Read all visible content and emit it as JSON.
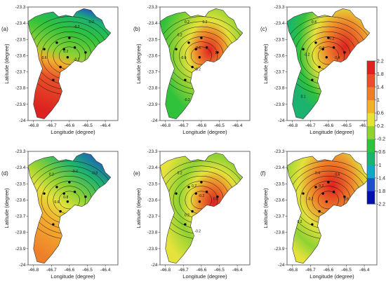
{
  "chart_data": {
    "type": "heatmap",
    "x_label": "Longitude (degree)",
    "y_label": "Latitude (degree)",
    "x_ticks": [
      "-46.8",
      "-46.7",
      "-46.6",
      "-46.5",
      "-46.4"
    ],
    "y_ticks": [
      "-23.3",
      "-23.4",
      "-23.5",
      "-23.6",
      "-23.7",
      "-23.8",
      "-23.9",
      "-24"
    ],
    "xlim": [
      -46.83,
      -46.33
    ],
    "ylim": [
      -24.0,
      -23.3
    ],
    "colorbar": {
      "ticks": [
        "2.2",
        "1.8",
        "1.4",
        "1",
        "0.6",
        "0.2",
        "-0.2",
        "-0.6",
        "-1",
        "-1.4",
        "-1.8",
        "-2.2"
      ],
      "range": [
        -2.2,
        2.2
      ],
      "colors": [
        "#0010a8",
        "#1f4fc8",
        "#13a4c7",
        "#1bb36f",
        "#31c23c",
        "#8fd233",
        "#e4e23b",
        "#f3b02f",
        "#ee7f2a",
        "#e8502a",
        "#dd2220"
      ]
    },
    "panels": [
      {
        "label": "(a)",
        "contour_labels": [
          "-0.2",
          "-0.2",
          "0.6",
          "-0.2",
          "0.2"
        ]
      },
      {
        "label": "(b)",
        "contour_labels": [
          "0.2",
          "-0.6",
          "0.2",
          "1",
          "0.2",
          "-0.6",
          "-0.2",
          "-0.2"
        ]
      },
      {
        "label": "(c)",
        "contour_labels": [
          "0.4",
          "0.2",
          "-0.4",
          "-0.2",
          "0.4",
          "0.1"
        ]
      },
      {
        "label": "(d)",
        "contour_labels": [
          "-0.8",
          "-0.2",
          "0.2",
          "0.6",
          "0.8"
        ]
      },
      {
        "label": "(e)",
        "contour_labels": [
          "0.2",
          "0.2",
          "-0.2",
          "0.6",
          "0.2",
          "-0.2"
        ]
      },
      {
        "label": "(f)",
        "contour_labels": [
          "0.6",
          "0.4",
          "0.2",
          "0.8",
          "-0.2",
          "0.2"
        ]
      }
    ]
  }
}
